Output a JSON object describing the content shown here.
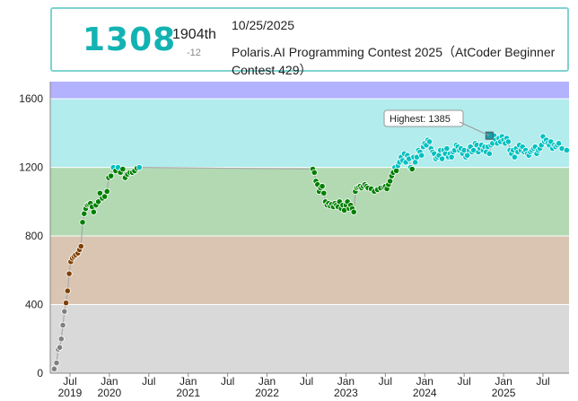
{
  "header": {
    "rating": "1308",
    "rank": "1904th",
    "rating_change": "-12",
    "date": "10/25/2025",
    "contest": "Polaris.AI Programming Contest 2025（AtCoder Beginner Contest 429）"
  },
  "chart_data": {
    "type": "line",
    "title": "",
    "xlabel": "",
    "ylabel": "",
    "ylim": [
      0,
      1700
    ],
    "xlim": [
      "2019-04",
      "2025-10"
    ],
    "y_ticks": [
      "0",
      "400",
      "800",
      "1200",
      "1600"
    ],
    "x_ticks": [
      {
        "month": "Jul",
        "year": "2019",
        "t": 2019.5
      },
      {
        "month": "Jan",
        "year": "2020",
        "t": 2020.0
      },
      {
        "month": "Jul",
        "year": "",
        "t": 2020.5
      },
      {
        "month": "Jan",
        "year": "2021",
        "t": 2021.0
      },
      {
        "month": "Jul",
        "year": "",
        "t": 2021.5
      },
      {
        "month": "Jan",
        "year": "2022",
        "t": 2022.0
      },
      {
        "month": "Jul",
        "year": "",
        "t": 2022.5
      },
      {
        "month": "Jan",
        "year": "2023",
        "t": 2023.0
      },
      {
        "month": "Jul",
        "year": "",
        "t": 2023.5
      },
      {
        "month": "Jan",
        "year": "2024",
        "t": 2024.0
      },
      {
        "month": "Jul",
        "year": "",
        "t": 2024.5
      },
      {
        "month": "Jan",
        "year": "2025",
        "t": 2025.0
      },
      {
        "month": "Jul",
        "year": "",
        "t": 2025.5
      }
    ],
    "bands": [
      {
        "from": 0,
        "to": 400,
        "color": "#d9d9d9"
      },
      {
        "from": 400,
        "to": 800,
        "color": "#d9c5b2"
      },
      {
        "from": 800,
        "to": 1200,
        "color": "#b2d9b2"
      },
      {
        "from": 1200,
        "to": 1600,
        "color": "#b2ecec"
      },
      {
        "from": 1600,
        "to": 1700,
        "color": "#b2b2ff"
      }
    ],
    "annotation": "Highest: 1385",
    "highest": {
      "t": 2024.82,
      "rating": 1385
    },
    "series": [
      {
        "name": "Rating",
        "t": [
          2019.3,
          2019.33,
          2019.35,
          2019.37,
          2019.39,
          2019.41,
          2019.43,
          2019.45,
          2019.47,
          2019.49,
          2019.51,
          2019.53,
          2019.55,
          2019.57,
          2019.6,
          2019.62,
          2019.64,
          2019.66,
          2019.68,
          2019.7,
          2019.72,
          2019.74,
          2019.76,
          2019.78,
          2019.8,
          2019.83,
          2019.86,
          2019.88,
          2019.91,
          2019.94,
          2019.97,
          2019.99,
          2020.02,
          2020.05,
          2020.08,
          2020.11,
          2020.14,
          2020.17,
          2020.2,
          2020.23,
          2020.26,
          2020.29,
          2020.32,
          2020.35,
          2020.38,
          2022.58,
          2022.6,
          2022.62,
          2022.64,
          2022.66,
          2022.68,
          2022.7,
          2022.72,
          2022.74,
          2022.76,
          2022.78,
          2022.8,
          2022.82,
          2022.84,
          2022.86,
          2022.88,
          2022.9,
          2022.92,
          2022.94,
          2022.96,
          2022.98,
          2023.0,
          2023.02,
          2023.04,
          2023.06,
          2023.08,
          2023.1,
          2023.12,
          2023.14,
          2023.16,
          2023.18,
          2023.2,
          2023.22,
          2023.24,
          2023.26,
          2023.28,
          2023.32,
          2023.36,
          2023.4,
          2023.44,
          2023.48,
          2023.5,
          2023.52,
          2023.54,
          2023.56,
          2023.58,
          2023.6,
          2023.62,
          2023.64,
          2023.66,
          2023.68,
          2023.7,
          2023.72,
          2023.74,
          2023.76,
          2023.78,
          2023.8,
          2023.82,
          2023.84,
          2023.86,
          2023.88,
          2023.9,
          2023.92,
          2023.94,
          2023.96,
          2023.98,
          2024.0,
          2024.02,
          2024.04,
          2024.06,
          2024.08,
          2024.1,
          2024.12,
          2024.14,
          2024.16,
          2024.18,
          2024.2,
          2024.22,
          2024.24,
          2024.26,
          2024.28,
          2024.3,
          2024.32,
          2024.34,
          2024.36,
          2024.38,
          2024.4,
          2024.42,
          2024.44,
          2024.46,
          2024.48,
          2024.5,
          2024.52,
          2024.54,
          2024.56,
          2024.58,
          2024.6,
          2024.62,
          2024.64,
          2024.66,
          2024.68,
          2024.7,
          2024.72,
          2024.74,
          2024.76,
          2024.78,
          2024.8,
          2024.82,
          2024.84,
          2024.86,
          2024.88,
          2024.9,
          2024.92,
          2024.94,
          2024.96,
          2024.98,
          2025.0,
          2025.02,
          2025.04,
          2025.06,
          2025.08,
          2025.1,
          2025.12,
          2025.14,
          2025.16,
          2025.18,
          2025.2,
          2025.22,
          2025.24,
          2025.26,
          2025.28,
          2025.3,
          2025.32,
          2025.34,
          2025.36,
          2025.38,
          2025.4,
          2025.42,
          2025.44,
          2025.46,
          2025.48,
          2025.5,
          2025.52,
          2025.54,
          2025.56,
          2025.58,
          2025.6,
          2025.62,
          2025.64,
          2025.66,
          2025.68,
          2025.7,
          2025.74,
          2025.8
        ],
        "rating": [
          25,
          60,
          140,
          150,
          200,
          280,
          360,
          410,
          480,
          580,
          650,
          670,
          680,
          690,
          700,
          720,
          740,
          880,
          930,
          960,
          980,
          985,
          990,
          970,
          940,
          980,
          1000,
          1050,
          1020,
          1030,
          1060,
          1140,
          1150,
          1200,
          1180,
          1200,
          1170,
          1190,
          1140,
          1160,
          1170,
          1170,
          1180,
          1195,
          1200,
          1190,
          1170,
          1120,
          1100,
          1060,
          1080,
          1090,
          1050,
          1000,
          980,
          990,
          975,
          985,
          970,
          990,
          980,
          970,
          1000,
          960,
          980,
          950,
          980,
          1000,
          960,
          980,
          960,
          940,
          1060,
          1080,
          1085,
          1090,
          1080,
          1090,
          1100,
          1090,
          1080,
          1075,
          1060,
          1070,
          1080,
          1085,
          1090,
          1075,
          1100,
          1120,
          1150,
          1170,
          1200,
          1180,
          1210,
          1230,
          1260,
          1240,
          1280,
          1230,
          1270,
          1250,
          1200,
          1190,
          1260,
          1230,
          1260,
          1300,
          1290,
          1270,
          1320,
          1340,
          1330,
          1360,
          1350,
          1310,
          1290,
          1280,
          1250,
          1260,
          1270,
          1300,
          1250,
          1300,
          1280,
          1310,
          1260,
          1280,
          1260,
          1290,
          1300,
          1330,
          1320,
          1300,
          1310,
          1280,
          1300,
          1260,
          1270,
          1300,
          1320,
          1290,
          1300,
          1340,
          1330,
          1290,
          1310,
          1330,
          1300,
          1320,
          1290,
          1320,
          1280,
          1330,
          1340,
          1385,
          1360,
          1340,
          1370,
          1350,
          1380,
          1360,
          1340,
          1370,
          1350,
          1300,
          1280,
          1300,
          1260,
          1310,
          1290,
          1330,
          1300,
          1320,
          1290,
          1300,
          1280,
          1270,
          1290,
          1300,
          1310,
          1320,
          1280,
          1300,
          1310,
          1330,
          1380,
          1350,
          1360,
          1340,
          1330,
          1350,
          1310,
          1330,
          1320,
          1330,
          1340,
          1310,
          1300
        ]
      }
    ]
  }
}
